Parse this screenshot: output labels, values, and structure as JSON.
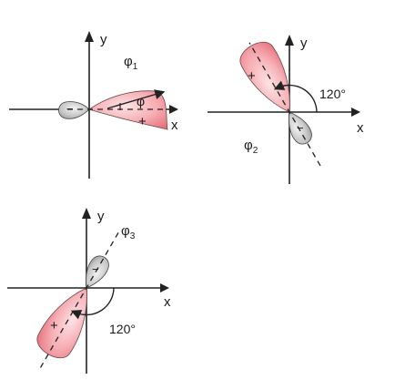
{
  "colors": {
    "lobe_positive": "#f08a93",
    "lobe_positive_light": "#fde3e5",
    "lobe_negative": "#a9a9a9",
    "lobe_negative_light": "#eeeeee",
    "axis": "#222222",
    "outline": "#6a4a4a"
  },
  "panels": [
    {
      "id": "phi1",
      "axis_x_label": "x",
      "axis_y_label": "y",
      "orbital_label": "φ",
      "orbital_subscript": "1",
      "positive_sign": "+",
      "negative_sign": "−",
      "angle_label": "φ",
      "direction_deg": 0
    },
    {
      "id": "phi2",
      "axis_x_label": "x",
      "axis_y_label": "y",
      "orbital_label": "φ",
      "orbital_subscript": "2",
      "positive_sign": "+",
      "negative_sign": "−",
      "angle_label": "120°",
      "direction_deg": 120
    },
    {
      "id": "phi3",
      "axis_x_label": "x",
      "axis_y_label": "y",
      "orbital_label": "φ",
      "orbital_subscript": "3",
      "positive_sign": "+",
      "negative_sign": "−",
      "angle_label": "120°",
      "direction_deg": 240
    }
  ]
}
